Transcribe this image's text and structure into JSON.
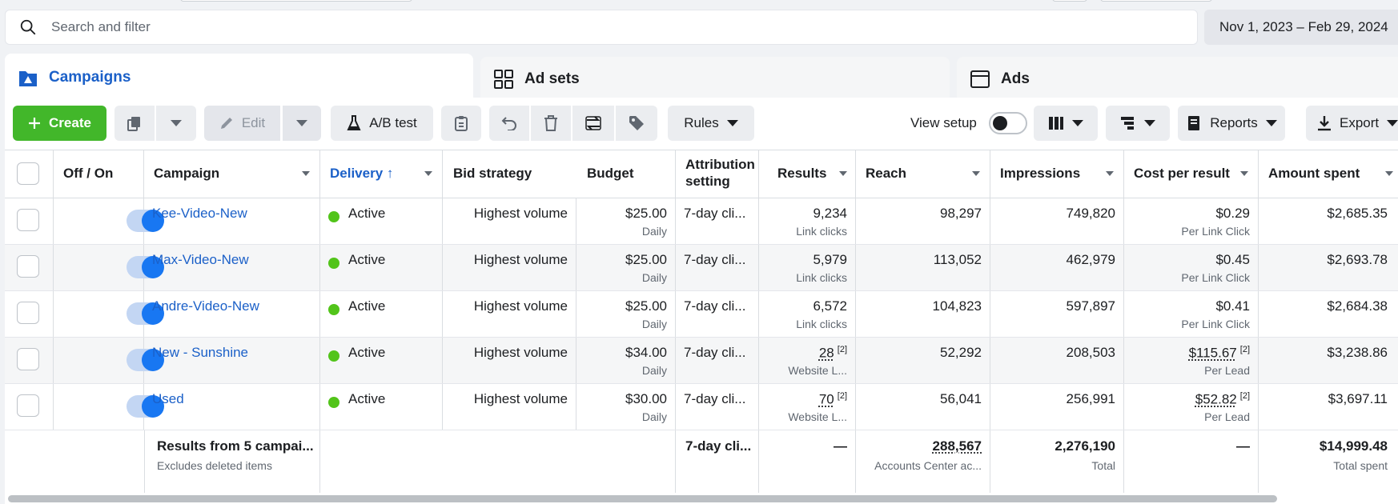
{
  "search": {
    "placeholder": "Search and filter"
  },
  "date_range": "Nov 1, 2023 – Feb 29, 2024",
  "tabs": [
    {
      "label": "Campaigns",
      "active": true
    },
    {
      "label": "Ad sets",
      "active": false
    },
    {
      "label": "Ads",
      "active": false
    }
  ],
  "toolbar": {
    "create_label": "Create",
    "edit_label": "Edit",
    "ab_test_label": "A/B test",
    "rules_label": "Rules",
    "view_setup_label": "View setup",
    "reports_label": "Reports",
    "export_label": "Export"
  },
  "columns": {
    "off_on": "Off / On",
    "campaign": "Campaign",
    "delivery": "Delivery",
    "delivery_sort": "↑",
    "bid_strategy": "Bid strategy",
    "budget": "Budget",
    "attribution_1": "Attribution",
    "attribution_2": "setting",
    "results": "Results",
    "reach": "Reach",
    "impressions": "Impressions",
    "cost_per_result": "Cost per result",
    "amount_spent": "Amount spent"
  },
  "rows": [
    {
      "campaign": "Kee-Video-New",
      "delivery": "Active",
      "bid_strategy": "Highest volume",
      "budget": "$25.00",
      "budget_sub": "Daily",
      "attribution": "7-day cli...",
      "results": "9,234",
      "results_sub": "Link clicks",
      "reach": "98,297",
      "impressions": "749,820",
      "cost_per_result": "$0.29",
      "cost_sub": "Per Link Click",
      "amount_spent": "$2,685.35"
    },
    {
      "campaign": "Max-Video-New",
      "delivery": "Active",
      "bid_strategy": "Highest volume",
      "budget": "$25.00",
      "budget_sub": "Daily",
      "attribution": "7-day cli...",
      "results": "5,979",
      "results_sub": "Link clicks",
      "reach": "113,052",
      "impressions": "462,979",
      "cost_per_result": "$0.45",
      "cost_sub": "Per Link Click",
      "amount_spent": "$2,693.78"
    },
    {
      "campaign": "Andre-Video-New",
      "delivery": "Active",
      "bid_strategy": "Highest volume",
      "budget": "$25.00",
      "budget_sub": "Daily",
      "attribution": "7-day cli...",
      "results": "6,572",
      "results_sub": "Link clicks",
      "reach": "104,823",
      "impressions": "597,897",
      "cost_per_result": "$0.41",
      "cost_sub": "Per Link Click",
      "amount_spent": "$2,684.38"
    },
    {
      "campaign": "New - Sunshine",
      "delivery": "Active",
      "bid_strategy": "Highest volume",
      "budget": "$34.00",
      "budget_sub": "Daily",
      "attribution": "7-day cli...",
      "results": "28",
      "results_note": "[2]",
      "results_sub": "Website L...",
      "reach": "52,292",
      "impressions": "208,503",
      "cost_per_result": "$115.67",
      "cost_note": "[2]",
      "cost_sub": "Per Lead",
      "amount_spent": "$3,238.86"
    },
    {
      "campaign": "Used",
      "delivery": "Active",
      "bid_strategy": "Highest volume",
      "budget": "$30.00",
      "budget_sub": "Daily",
      "attribution": "7-day cli...",
      "results": "70",
      "results_note": "[2]",
      "results_sub": "Website L...",
      "reach": "56,041",
      "impressions": "256,991",
      "cost_per_result": "$52.82",
      "cost_note": "[2]",
      "cost_sub": "Per Lead",
      "amount_spent": "$3,697.11"
    }
  ],
  "footer": {
    "title": "Results from 5 campai...",
    "subtitle": "Excludes deleted items",
    "attribution": "7-day cli...",
    "results": "—",
    "reach": "288,567",
    "reach_sub": "Accounts Center ac...",
    "impressions": "2,276,190",
    "impressions_sub": "Total",
    "cost_per_result": "—",
    "amount_spent": "$14,999.48",
    "amount_sub": "Total spent"
  },
  "colors": {
    "accent": "#1b60c8",
    "create": "#42b72a",
    "active_dot": "#52c41a",
    "toggle_on": "#1877f2"
  }
}
